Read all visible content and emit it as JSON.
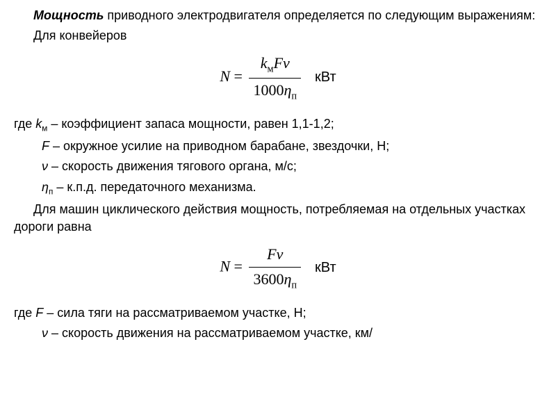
{
  "p1_lead_word": "Мощность",
  "p1_rest": " приводного электродвигателя определяется по следующим выражениям:",
  "p2": "Для конвейеров",
  "formula1": {
    "lhs_var": "N",
    "eq": " = ",
    "num_k": "k",
    "num_k_sub": "м",
    "num_F": "F",
    "num_nu": "ν",
    "den_const": "1000",
    "den_eta": "η",
    "den_eta_sub": "п",
    "unit": "кВт"
  },
  "defs1": {
    "line1_pre": "где ",
    "line1_var": "k",
    "line1_sub": "м",
    "line1_rest": " – коэффициент запаса мощности, равен 1,1-1,2;",
    "line2_var": "F",
    "line2_rest": " – окружное усилие на приводном барабане, звездочки, Н;",
    "line3_var": "ν",
    "line3_rest": " – скорость движения тягового органа, м/с;",
    "line4_var": "η",
    "line4_sub": "п",
    "line4_rest": " – к.п.д. передаточного механизма."
  },
  "p3": "Для машин циклического действия мощность, потребляемая на отдельных участках дороги равна",
  "formula2": {
    "lhs_var": "N",
    "eq": " = ",
    "num_F": "F",
    "num_nu": "ν",
    "den_const": "3600",
    "den_eta": "η",
    "den_eta_sub": "п",
    "unit": "кВт"
  },
  "defs2": {
    "line1_pre": "где ",
    "line1_var": "F",
    "line1_rest": " – сила тяги на рассматриваемом участке, Н;",
    "line2_var": "ν",
    "line2_rest": " – скорость движения на рассматриваемом участке, км/"
  }
}
